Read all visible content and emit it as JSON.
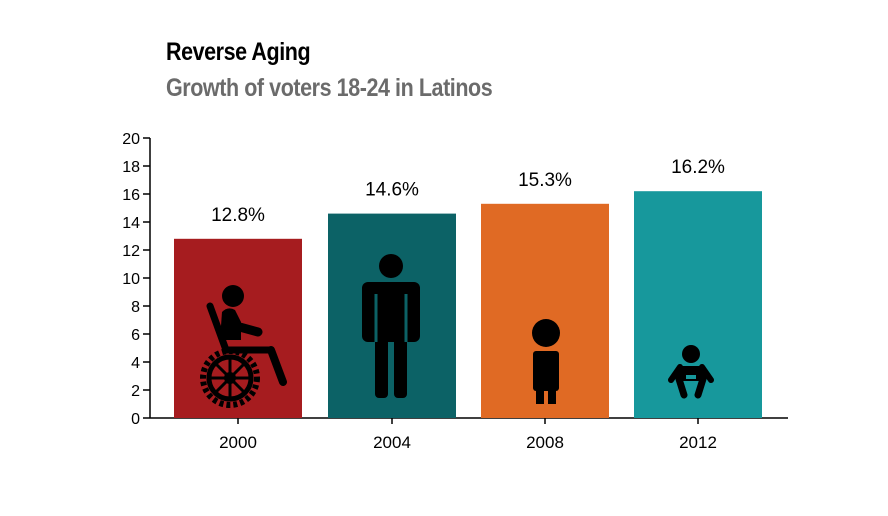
{
  "chart_data": {
    "type": "bar",
    "title": "Reverse Aging",
    "subtitle": "Growth of voters 18-24 in Latinos",
    "categories": [
      "2000",
      "2004",
      "2008",
      "2012"
    ],
    "values": [
      12.8,
      14.6,
      15.3,
      16.2
    ],
    "value_labels": [
      "12.8%",
      "14.6%",
      "15.3%",
      "16.2%"
    ],
    "icons": [
      "wheelchair-person-icon",
      "adult-person-icon",
      "child-person-icon",
      "baby-icon"
    ],
    "colors": [
      "#a61c1f",
      "#0c6266",
      "#e06a24",
      "#17989c"
    ],
    "ylim": [
      0,
      20
    ],
    "yticks": [
      0,
      2,
      4,
      6,
      8,
      10,
      12,
      14,
      16,
      18,
      20
    ],
    "xlabel": "",
    "ylabel": ""
  }
}
